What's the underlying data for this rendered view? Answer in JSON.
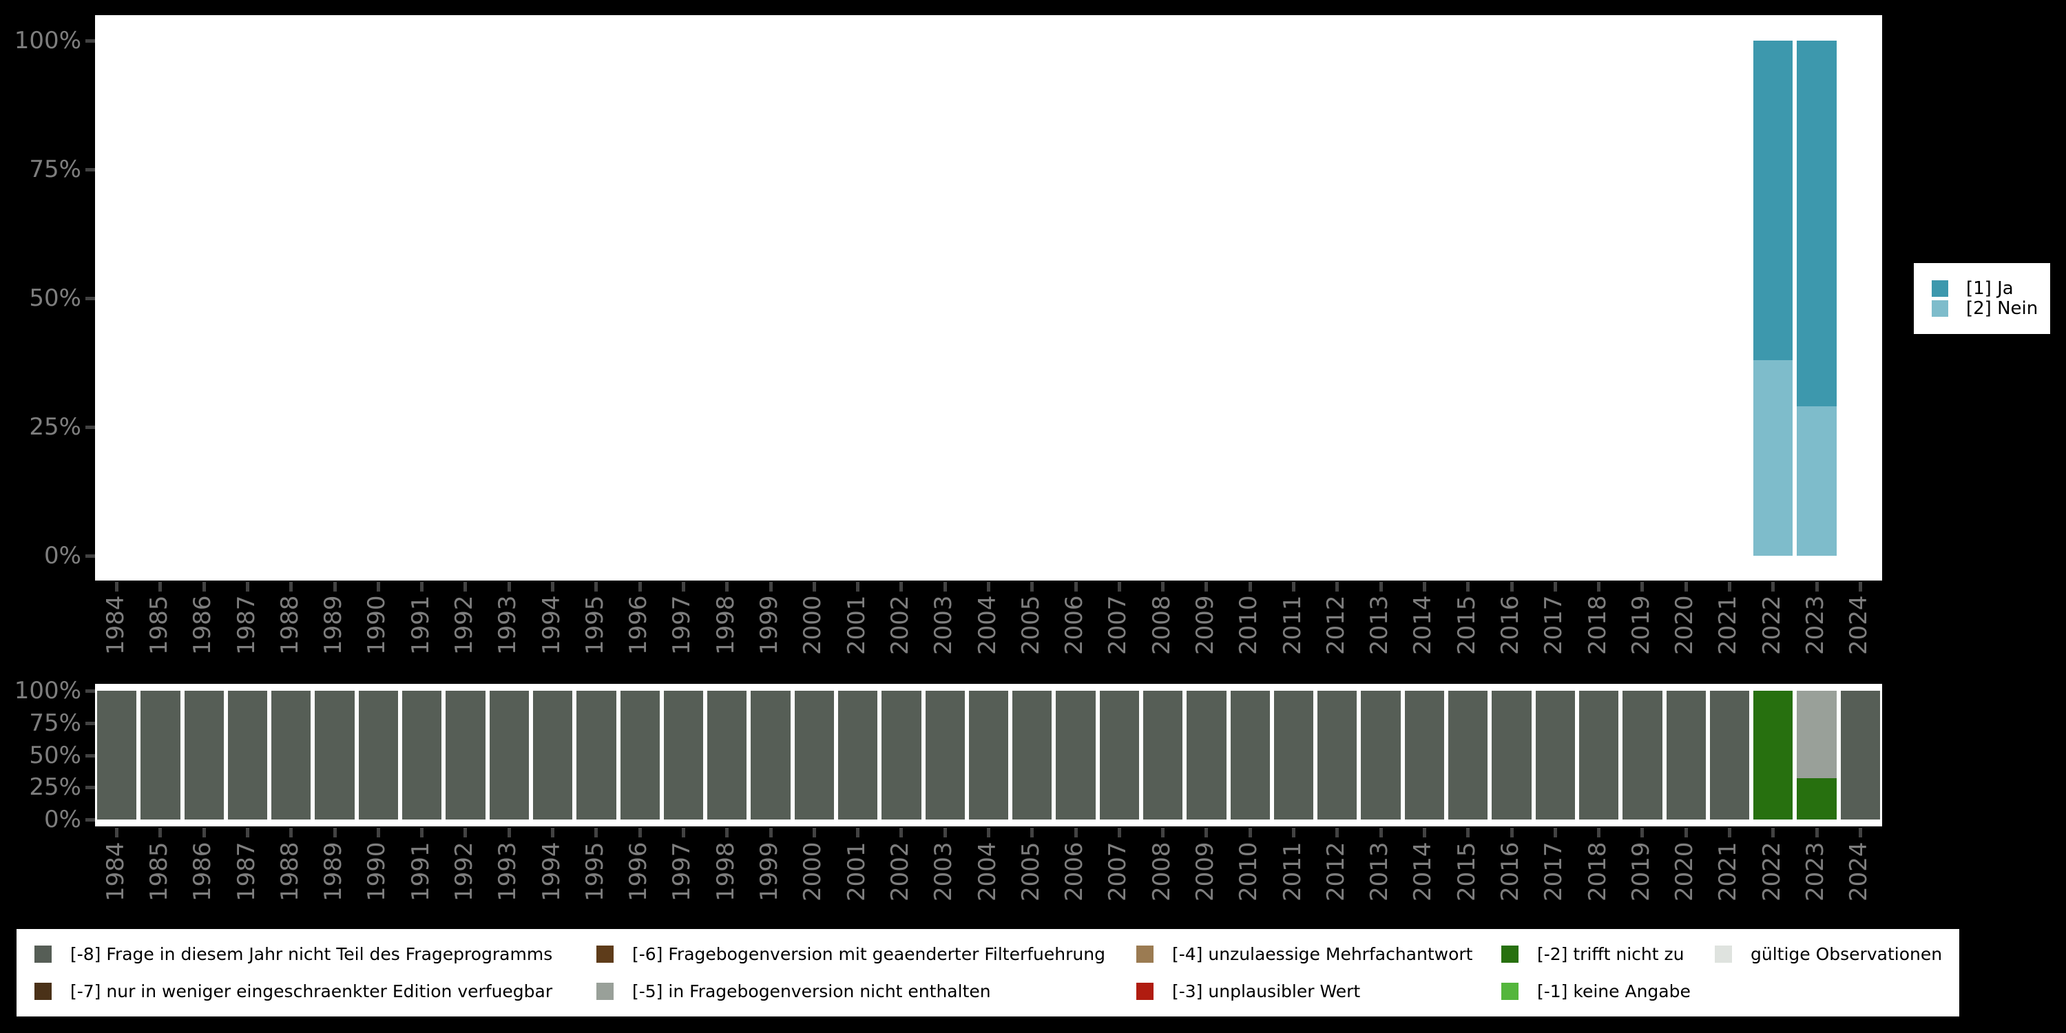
{
  "page": {
    "background": "#000000",
    "panel_background": "#ffffff",
    "axis_text_color": "#7e7e7e",
    "tick_color": "#424242"
  },
  "chart_data": [
    {
      "type": "bar",
      "stacked": true,
      "unit": "percent",
      "title": "",
      "xlabel": "",
      "ylabel": "",
      "ylim": [
        0,
        100
      ],
      "grid": false,
      "legend_position": "right",
      "yticks": [
        "100%",
        "75%",
        "50%",
        "25%",
        "0%"
      ],
      "categories": [
        "1984",
        "1985",
        "1986",
        "1987",
        "1988",
        "1989",
        "1990",
        "1991",
        "1992",
        "1993",
        "1994",
        "1995",
        "1996",
        "1997",
        "1998",
        "1999",
        "2000",
        "2001",
        "2002",
        "2003",
        "2004",
        "2005",
        "2006",
        "2007",
        "2008",
        "2009",
        "2010",
        "2011",
        "2012",
        "2013",
        "2014",
        "2015",
        "2016",
        "2017",
        "2018",
        "2019",
        "2020",
        "2021",
        "2022",
        "2023",
        "2024"
      ],
      "series": [
        {
          "name": "[1] Ja",
          "color": "#3d98ad",
          "values_by_year": {
            "2022": 62,
            "2023": 71
          }
        },
        {
          "name": "[2] Nein",
          "color": "#7ebccb",
          "values_by_year": {
            "2022": 38,
            "2023": 29
          }
        }
      ],
      "legend": [
        {
          "label": "[1] Ja",
          "color": "#3d98ad"
        },
        {
          "label": "[2] Nein",
          "color": "#7ebccb"
        }
      ]
    },
    {
      "type": "bar",
      "stacked": true,
      "unit": "percent",
      "title": "",
      "xlabel": "",
      "ylabel": "",
      "ylim": [
        0,
        100
      ],
      "grid": false,
      "legend_position": "bottom",
      "yticks": [
        "100%",
        "75%",
        "50%",
        "25%",
        "0%"
      ],
      "categories": [
        "1984",
        "1985",
        "1986",
        "1987",
        "1988",
        "1989",
        "1990",
        "1991",
        "1992",
        "1993",
        "1994",
        "1995",
        "1996",
        "1997",
        "1998",
        "1999",
        "2000",
        "2001",
        "2002",
        "2003",
        "2004",
        "2005",
        "2006",
        "2007",
        "2008",
        "2009",
        "2010",
        "2011",
        "2012",
        "2013",
        "2014",
        "2015",
        "2016",
        "2017",
        "2018",
        "2019",
        "2020",
        "2021",
        "2022",
        "2023",
        "2024"
      ],
      "series": [
        {
          "name": "[-8] Frage in diesem Jahr nicht Teil des Frageprogramms",
          "color": "#565e56",
          "values_by_year": {
            "1984": 100,
            "1985": 100,
            "1986": 100,
            "1987": 100,
            "1988": 100,
            "1989": 100,
            "1990": 100,
            "1991": 100,
            "1992": 100,
            "1993": 100,
            "1994": 100,
            "1995": 100,
            "1996": 100,
            "1997": 100,
            "1998": 100,
            "1999": 100,
            "2000": 100,
            "2001": 100,
            "2002": 100,
            "2003": 100,
            "2004": 100,
            "2005": 100,
            "2006": 100,
            "2007": 100,
            "2008": 100,
            "2009": 100,
            "2010": 100,
            "2011": 100,
            "2012": 100,
            "2013": 100,
            "2014": 100,
            "2015": 100,
            "2016": 100,
            "2017": 100,
            "2018": 100,
            "2019": 100,
            "2020": 100,
            "2021": 100,
            "2024": 100
          }
        },
        {
          "name": "[-7] nur in weniger eingeschraenkter Edition verfuegbar",
          "color": "#4a3118",
          "values_by_year": {}
        },
        {
          "name": "[-6] Fragebogenversion mit geaenderter Filterfuehrung",
          "color": "#5e3c1a",
          "values_by_year": {}
        },
        {
          "name": "[-5] in Fragebogenversion nicht enthalten",
          "color": "#99a099",
          "values_by_year": {
            "2023": 68
          }
        },
        {
          "name": "[-4] unzulaessige Mehrfachantwort",
          "color": "#9b7b52",
          "values_by_year": {}
        },
        {
          "name": "[-3] unplausibler Wert",
          "color": "#b01c10",
          "values_by_year": {}
        },
        {
          "name": "[-2] trifft nicht zu",
          "color": "#27700f",
          "values_by_year": {
            "2022": 100,
            "2023": 32
          }
        },
        {
          "name": "[-1] keine Angabe",
          "color": "#54b63c",
          "values_by_year": {}
        },
        {
          "name": "gültige Observationen",
          "color": "#dfe3df",
          "values_by_year": {}
        }
      ],
      "legend": [
        {
          "label": "[-8] Frage in diesem Jahr nicht Teil des Frageprogramms",
          "color": "#565e56"
        },
        {
          "label": "[-7] nur in weniger eingeschraenkter Edition verfuegbar",
          "color": "#4a3118"
        },
        {
          "label": "[-6] Fragebogenversion mit geaenderter Filterfuehrung",
          "color": "#5e3c1a"
        },
        {
          "label": "[-5] in Fragebogenversion nicht enthalten",
          "color": "#99a099"
        },
        {
          "label": "[-4] unzulaessige Mehrfachantwort",
          "color": "#9b7b52"
        },
        {
          "label": "[-3] unplausibler Wert",
          "color": "#b01c10"
        },
        {
          "label": "[-2] trifft nicht zu",
          "color": "#27700f"
        },
        {
          "label": "[-1] keine Angabe",
          "color": "#54b63c"
        },
        {
          "label": "gültige Observationen",
          "color": "#dfe3df"
        }
      ]
    }
  ]
}
